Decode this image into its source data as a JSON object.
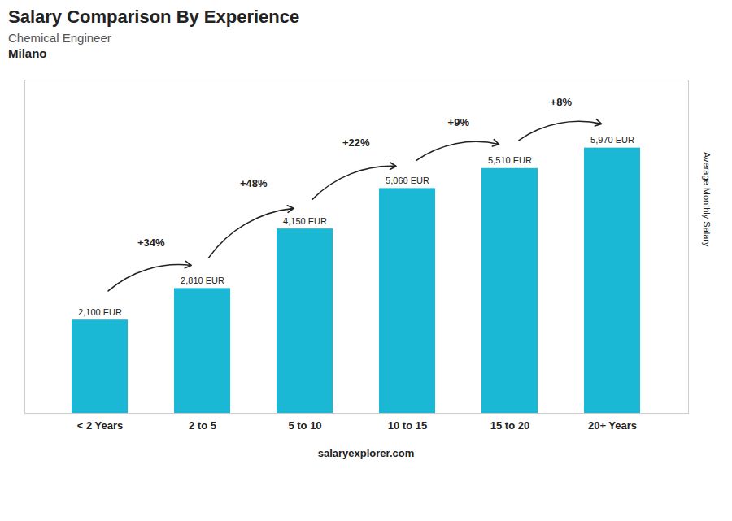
{
  "chart_data": {
    "type": "bar",
    "title": "Salary Comparison By Experience",
    "subtitle": "Chemical Engineer",
    "annotations": [
      "Milano",
      "salaryexplorer.com"
    ],
    "ylabel": "Average Monthly Salary",
    "categories": [
      "< 2 Years",
      "2 to 5",
      "5 to 10",
      "10 to 15",
      "15 to 20",
      "20+ Years"
    ],
    "values": [
      2100,
      2810,
      4150,
      5060,
      5510,
      5970
    ],
    "value_labels": [
      "2,100 EUR",
      "2,810 EUR",
      "4,150 EUR",
      "5,060 EUR",
      "5,510 EUR",
      "5,970 EUR"
    ],
    "data_labels": true,
    "change_labels": [
      null,
      "+34%",
      "+48%",
      "+22%",
      "+9%",
      "+8%"
    ],
    "color": "#1ab8d4",
    "ylim": [
      0,
      7500
    ],
    "grid": false,
    "tick_labels": "x"
  }
}
